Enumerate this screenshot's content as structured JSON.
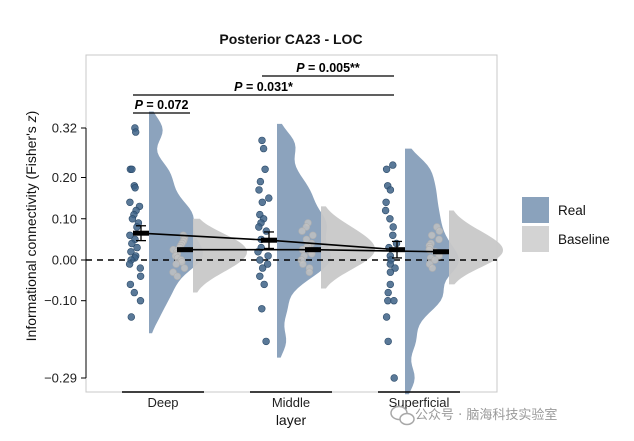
{
  "chart_data": {
    "type": "raincloud",
    "title": "Posterior CA23 - LOC",
    "xlabel": "layer",
    "ylabel_main": "Informational connectivity (Fisher's ",
    "ylabel_italic": "z",
    "ylabel_close": ")",
    "ylim": [
      -0.29,
      0.32
    ],
    "yticks": [
      -0.29,
      -0.1,
      0.0,
      0.1,
      0.2,
      0.32
    ],
    "ytick_labels": [
      "−0.29",
      "−0.10",
      "0.00",
      "0.10",
      "0.20",
      "0.32"
    ],
    "reference_line": 0,
    "categories": [
      "Deep",
      "Middle",
      "Superficial"
    ],
    "series": [
      {
        "name": "Real",
        "color": "#7f99b6",
        "point_color": "#3d6286",
        "means": [
          0.065,
          0.048,
          0.025
        ],
        "errors": [
          0.018,
          0.02,
          0.02
        ],
        "points": [
          [
            0.32,
            0.31,
            0.22,
            0.22,
            0.18,
            0.175,
            0.14,
            0.13,
            0.12,
            0.11,
            0.1,
            0.09,
            0.08,
            0.06,
            0.05,
            0.04,
            0.03,
            0.02,
            0.01,
            0.005,
            0.0,
            -0.01,
            -0.02,
            -0.04,
            -0.06,
            -0.08,
            -0.1,
            -0.14
          ],
          [
            0.29,
            0.27,
            0.22,
            0.19,
            0.17,
            0.15,
            0.14,
            0.11,
            0.1,
            0.09,
            0.08,
            0.07,
            0.05,
            0.03,
            0.02,
            0.01,
            0.0,
            -0.01,
            -0.02,
            -0.04,
            -0.06,
            -0.12,
            -0.2
          ],
          [
            0.23,
            0.22,
            0.18,
            0.17,
            0.14,
            0.12,
            0.1,
            0.08,
            0.06,
            0.04,
            0.03,
            0.01,
            0.0,
            -0.01,
            -0.02,
            -0.03,
            -0.06,
            -0.08,
            -0.1,
            -0.1,
            -0.14,
            -0.2,
            -0.29
          ]
        ]
      },
      {
        "name": "Baseline",
        "color": "#c8c8c8",
        "point_color": "#c2c2c2",
        "means": [
          0.025,
          0.025,
          0.02
        ],
        "errors": [
          0.004,
          0.004,
          0.004
        ],
        "points": [
          [
            0.06,
            0.055,
            0.05,
            0.045,
            0.04,
            0.035,
            0.03,
            0.025,
            0.02,
            0.015,
            0.01,
            0.005,
            0.0,
            -0.005,
            -0.01,
            -0.02,
            -0.03,
            -0.04
          ],
          [
            0.09,
            0.08,
            0.07,
            0.06,
            0.05,
            0.04,
            0.035,
            0.03,
            0.025,
            0.02,
            0.015,
            0.01,
            0.0,
            -0.01,
            -0.02,
            -0.03
          ],
          [
            0.08,
            0.07,
            0.06,
            0.05,
            0.04,
            0.035,
            0.03,
            0.025,
            0.02,
            0.015,
            0.01,
            0.005,
            0.0,
            -0.01,
            -0.02
          ]
        ]
      }
    ],
    "significance": [
      {
        "from": 0,
        "to": 1,
        "label": "P = 0.072",
        "prefix": "P",
        "suffix": " = 0.072"
      },
      {
        "from": 0,
        "to": 2,
        "label": "P = 0.031*",
        "prefix": "P",
        "suffix": " = 0.031*"
      },
      {
        "from": 1,
        "to": 2,
        "label": "P = 0.005**",
        "prefix": "P",
        "suffix": " = 0.005**"
      }
    ],
    "legend": [
      {
        "label": "Real",
        "color": "#8aa2bc"
      },
      {
        "label": "Baseline",
        "color": "#d3d3d3"
      }
    ]
  },
  "watermark": "公众号 · 脑海科技实验室",
  "watermark_icon": "wechat-icon"
}
